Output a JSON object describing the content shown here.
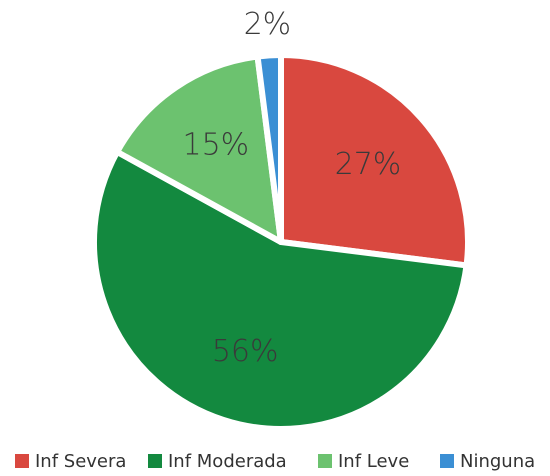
{
  "chart_data": {
    "type": "pie",
    "categories": [
      "Inf Severa",
      "Inf Moderada",
      "Inf Leve",
      "Ninguna"
    ],
    "values": [
      27,
      56,
      15,
      2
    ],
    "value_labels": [
      "27%",
      "56%",
      "15%",
      "2%"
    ],
    "colors": [
      "#d9483f",
      "#13893f",
      "#6cc26f",
      "#3b8fd4"
    ],
    "legend": "bottom"
  }
}
